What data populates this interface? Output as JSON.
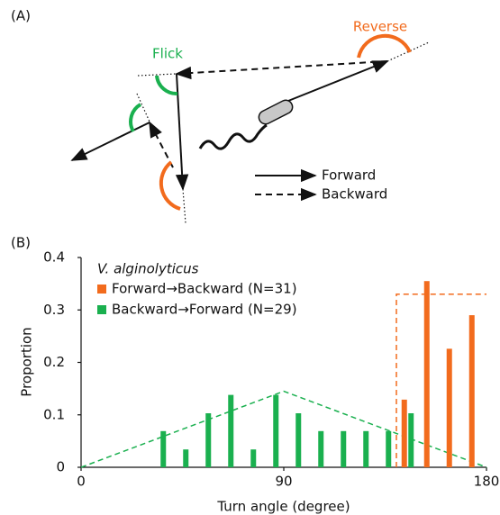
{
  "panel_a": {
    "label": "(A)",
    "annotations": [
      "Flick",
      "Reverse"
    ],
    "legend": [
      "Forward",
      "Backward"
    ]
  },
  "chart_data": {
    "type": "bar",
    "panel_label": "(B)",
    "x_label": "Turn angle (degree)",
    "y_label": "Proportion",
    "legend_title": "V. alginolyticus",
    "legend_position": "upper left",
    "xlim": [
      0,
      180
    ],
    "xticks": [
      0,
      90,
      180
    ],
    "ylim": [
      0,
      0.4
    ],
    "yticks": [
      0,
      0.1,
      0.2,
      0.3,
      0.4
    ],
    "series": [
      {
        "name": "Forward→Backward (N=31)",
        "color": "#f26b1d",
        "x": [
          145,
          155,
          165,
          175
        ],
        "values": [
          0.129,
          0.355,
          0.226,
          0.29
        ]
      },
      {
        "name": "Backward→Forward (N=29)",
        "color": "#1ab04f",
        "x": [
          35,
          45,
          55,
          65,
          75,
          85,
          95,
          105,
          115,
          125,
          135,
          145
        ],
        "values": [
          0.069,
          0.034,
          0.103,
          0.138,
          0.034,
          0.138,
          0.103,
          0.069,
          0.069,
          0.069,
          0.069,
          0.103
        ]
      }
    ],
    "guides": [
      {
        "color": "#f26b1d",
        "x": [
          140,
          140,
          180
        ],
        "values": [
          0,
          0.33,
          0.33
        ]
      },
      {
        "color": "#1ab04f",
        "x": [
          0,
          90,
          180
        ],
        "values": [
          0,
          0.145,
          0
        ]
      }
    ]
  }
}
